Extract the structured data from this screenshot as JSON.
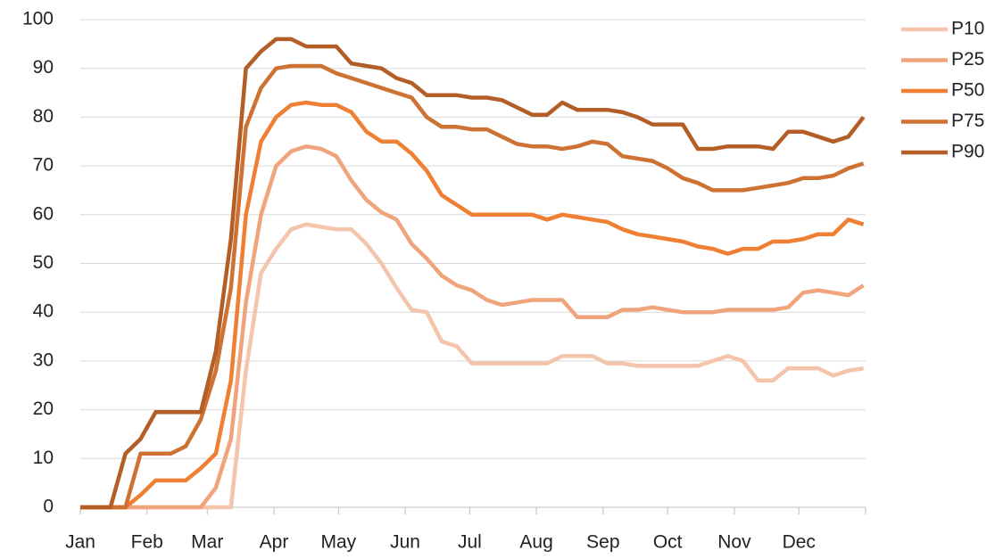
{
  "chart_data": {
    "type": "line",
    "x": [
      0,
      7,
      14,
      21,
      28,
      35,
      42,
      49,
      56,
      63,
      70,
      77,
      84,
      91,
      98,
      105,
      112,
      119,
      126,
      133,
      140,
      147,
      154,
      161,
      168,
      175,
      182,
      189,
      196,
      203,
      210,
      217,
      224,
      231,
      238,
      245,
      252,
      259,
      266,
      273,
      280,
      287,
      294,
      301,
      308,
      315,
      322,
      329,
      336,
      343,
      350,
      357,
      364
    ],
    "xlim": [
      0,
      365
    ],
    "xticks": [
      {
        "value": 0,
        "label": "Jan"
      },
      {
        "value": 31,
        "label": "Feb"
      },
      {
        "value": 59,
        "label": "Mar"
      },
      {
        "value": 90,
        "label": "Apr"
      },
      {
        "value": 120,
        "label": "May"
      },
      {
        "value": 151,
        "label": "Jun"
      },
      {
        "value": 181,
        "label": "Jul"
      },
      {
        "value": 212,
        "label": "Aug"
      },
      {
        "value": 243,
        "label": "Sep"
      },
      {
        "value": 273,
        "label": "Oct"
      },
      {
        "value": 304,
        "label": "Nov"
      },
      {
        "value": 334,
        "label": "Dec"
      }
    ],
    "ylim": [
      0,
      100
    ],
    "yticks": [
      0,
      10,
      20,
      30,
      40,
      50,
      60,
      70,
      80,
      90,
      100
    ],
    "grid": true,
    "legend": "right",
    "series": [
      {
        "name": "P10",
        "color": "#f4c4ab",
        "values": [
          0,
          0,
          0,
          0,
          0,
          0,
          0,
          0,
          0,
          0,
          0,
          28,
          48,
          53,
          57,
          58,
          57.5,
          57,
          57,
          54,
          50,
          45,
          40.5,
          40,
          34,
          33,
          29.5,
          29.5,
          29.5,
          29.5,
          29.5,
          29.5,
          31,
          31,
          31,
          29.5,
          29.5,
          29,
          29,
          29,
          29,
          29,
          30,
          31,
          30,
          26,
          26,
          28.5,
          28.5,
          28.5,
          27,
          28,
          28.5
        ]
      },
      {
        "name": "P25",
        "color": "#f0a47c",
        "values": [
          0,
          0,
          0,
          0,
          0,
          0,
          0,
          0,
          0,
          4,
          14,
          42,
          60,
          70,
          73,
          74,
          73.5,
          72,
          67,
          63,
          60.5,
          59,
          54,
          51,
          47.5,
          45.5,
          44.5,
          42.5,
          41.5,
          42,
          42.5,
          42.5,
          42.5,
          39,
          39,
          39,
          40.5,
          40.5,
          41,
          40.5,
          40,
          40,
          40,
          40.5,
          40.5,
          40.5,
          40.5,
          41,
          44,
          44.5,
          44,
          43.5,
          45.5
        ]
      },
      {
        "name": "P50",
        "color": "#ee7f33",
        "values": [
          0,
          0,
          0,
          0,
          2.5,
          5.5,
          5.5,
          5.5,
          8,
          11,
          26,
          60,
          75,
          80,
          82.5,
          83,
          82.5,
          82.5,
          81,
          77,
          75,
          75,
          72.5,
          69,
          64,
          62,
          60,
          60,
          60,
          60,
          60,
          59,
          60,
          59.5,
          59,
          58.5,
          57,
          56,
          55.5,
          55,
          54.5,
          53.5,
          53,
          52,
          53,
          53,
          54.5,
          54.5,
          55,
          56,
          56,
          59,
          58
        ]
      },
      {
        "name": "P75",
        "color": "#cd7233",
        "values": [
          0,
          0,
          0,
          0,
          11,
          11,
          11,
          12.5,
          18,
          28,
          45,
          78,
          86,
          90,
          90.5,
          90.5,
          90.5,
          89,
          88,
          87,
          86,
          85,
          84,
          80,
          78,
          78,
          77.5,
          77.5,
          76,
          74.5,
          74,
          74,
          73.5,
          74,
          75,
          74.5,
          72,
          71.5,
          71,
          69.5,
          67.5,
          66.5,
          65,
          65,
          65,
          65.5,
          66,
          66.5,
          67.5,
          67.5,
          68,
          69.5,
          70.5
        ]
      },
      {
        "name": "P90",
        "color": "#b25e26",
        "values": [
          0,
          0,
          0,
          11,
          14,
          19.5,
          19.5,
          19.5,
          19.5,
          32,
          55,
          90,
          93.5,
          96,
          96,
          94.5,
          94.5,
          94.5,
          91,
          90.5,
          90,
          88,
          87,
          84.5,
          84.5,
          84.5,
          84,
          84,
          83.5,
          82,
          80.5,
          80.5,
          83,
          81.5,
          81.5,
          81.5,
          81,
          80,
          78.5,
          78.5,
          78.5,
          73.5,
          73.5,
          74,
          74,
          74,
          73.5,
          77,
          77,
          76,
          75,
          76,
          80
        ]
      }
    ]
  }
}
